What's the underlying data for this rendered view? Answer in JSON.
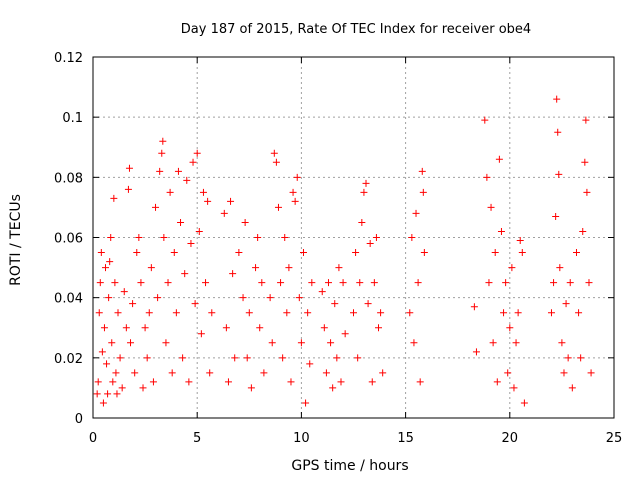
{
  "chart_data": {
    "type": "scatter",
    "title": "Day 187 of 2015, Rate Of TEC Index for receiver obe4",
    "xlabel": "GPS time / hours",
    "ylabel": "ROTI / TECUs",
    "xlim": [
      0,
      25
    ],
    "ylim": [
      0,
      0.12
    ],
    "xticks": [
      0,
      5,
      10,
      15,
      20,
      25
    ],
    "xtick_labels": [
      "0",
      "5",
      "10",
      "15",
      "20",
      "25"
    ],
    "yticks": [
      0,
      0.02,
      0.04,
      0.06,
      0.08,
      0.1,
      0.12
    ],
    "ytick_labels": [
      "0",
      "0.02",
      "0.04",
      "0.06",
      "0.08",
      "0.1",
      "0.12"
    ],
    "grid": true,
    "marker": "+",
    "color": "#ff0000",
    "series": [
      {
        "points": [
          [
            0.2,
            0.008
          ],
          [
            0.25,
            0.012
          ],
          [
            0.3,
            0.035
          ],
          [
            0.35,
            0.045
          ],
          [
            0.4,
            0.055
          ],
          [
            0.45,
            0.022
          ],
          [
            0.5,
            0.005
          ],
          [
            0.55,
            0.03
          ],
          [
            0.6,
            0.05
          ],
          [
            0.65,
            0.018
          ],
          [
            0.7,
            0.008
          ],
          [
            0.75,
            0.04
          ],
          [
            0.8,
            0.052
          ],
          [
            0.85,
            0.06
          ],
          [
            0.9,
            0.025
          ],
          [
            0.95,
            0.012
          ],
          [
            1.0,
            0.073
          ],
          [
            1.05,
            0.045
          ],
          [
            1.1,
            0.015
          ],
          [
            1.15,
            0.008
          ],
          [
            1.2,
            0.035
          ],
          [
            1.3,
            0.02
          ],
          [
            1.4,
            0.01
          ],
          [
            1.5,
            0.042
          ],
          [
            1.6,
            0.03
          ],
          [
            1.7,
            0.076
          ],
          [
            1.75,
            0.083
          ],
          [
            1.8,
            0.025
          ],
          [
            1.9,
            0.038
          ],
          [
            2.0,
            0.015
          ],
          [
            2.1,
            0.055
          ],
          [
            2.2,
            0.06
          ],
          [
            2.3,
            0.045
          ],
          [
            2.4,
            0.01
          ],
          [
            2.5,
            0.03
          ],
          [
            2.6,
            0.02
          ],
          [
            2.7,
            0.035
          ],
          [
            2.8,
            0.05
          ],
          [
            2.9,
            0.012
          ],
          [
            3.0,
            0.07
          ],
          [
            3.1,
            0.04
          ],
          [
            3.2,
            0.082
          ],
          [
            3.3,
            0.088
          ],
          [
            3.35,
            0.092
          ],
          [
            3.4,
            0.06
          ],
          [
            3.5,
            0.025
          ],
          [
            3.6,
            0.045
          ],
          [
            3.7,
            0.075
          ],
          [
            3.8,
            0.015
          ],
          [
            3.9,
            0.055
          ],
          [
            4.0,
            0.035
          ],
          [
            4.1,
            0.082
          ],
          [
            4.2,
            0.065
          ],
          [
            4.3,
            0.02
          ],
          [
            4.4,
            0.048
          ],
          [
            4.5,
            0.079
          ],
          [
            4.6,
            0.012
          ],
          [
            4.7,
            0.058
          ],
          [
            4.8,
            0.085
          ],
          [
            4.9,
            0.038
          ],
          [
            5.0,
            0.088
          ],
          [
            5.1,
            0.062
          ],
          [
            5.2,
            0.028
          ],
          [
            5.3,
            0.075
          ],
          [
            5.4,
            0.045
          ],
          [
            5.5,
            0.072
          ],
          [
            5.6,
            0.015
          ],
          [
            5.7,
            0.035
          ],
          [
            6.3,
            0.068
          ],
          [
            6.4,
            0.03
          ],
          [
            6.5,
            0.012
          ],
          [
            6.6,
            0.072
          ],
          [
            6.7,
            0.048
          ],
          [
            6.8,
            0.02
          ],
          [
            7.0,
            0.055
          ],
          [
            7.2,
            0.04
          ],
          [
            7.3,
            0.065
          ],
          [
            7.4,
            0.02
          ],
          [
            7.5,
            0.035
          ],
          [
            7.6,
            0.01
          ],
          [
            7.8,
            0.05
          ],
          [
            7.9,
            0.06
          ],
          [
            8.0,
            0.03
          ],
          [
            8.1,
            0.045
          ],
          [
            8.2,
            0.015
          ],
          [
            8.5,
            0.04
          ],
          [
            8.6,
            0.025
          ],
          [
            8.7,
            0.088
          ],
          [
            8.8,
            0.085
          ],
          [
            8.9,
            0.07
          ],
          [
            9.0,
            0.045
          ],
          [
            9.1,
            0.02
          ],
          [
            9.2,
            0.06
          ],
          [
            9.3,
            0.035
          ],
          [
            9.4,
            0.05
          ],
          [
            9.5,
            0.012
          ],
          [
            9.6,
            0.075
          ],
          [
            9.7,
            0.072
          ],
          [
            9.8,
            0.08
          ],
          [
            9.9,
            0.04
          ],
          [
            10.0,
            0.025
          ],
          [
            10.1,
            0.055
          ],
          [
            10.2,
            0.005
          ],
          [
            10.3,
            0.035
          ],
          [
            10.4,
            0.018
          ],
          [
            10.5,
            0.045
          ],
          [
            11.0,
            0.042
          ],
          [
            11.1,
            0.03
          ],
          [
            11.2,
            0.015
          ],
          [
            11.3,
            0.045
          ],
          [
            11.4,
            0.025
          ],
          [
            11.5,
            0.01
          ],
          [
            11.6,
            0.038
          ],
          [
            11.7,
            0.02
          ],
          [
            11.8,
            0.05
          ],
          [
            11.9,
            0.012
          ],
          [
            12.0,
            0.045
          ],
          [
            12.1,
            0.028
          ],
          [
            12.5,
            0.035
          ],
          [
            12.6,
            0.055
          ],
          [
            12.7,
            0.02
          ],
          [
            12.8,
            0.045
          ],
          [
            12.9,
            0.065
          ],
          [
            13.0,
            0.075
          ],
          [
            13.1,
            0.078
          ],
          [
            13.2,
            0.038
          ],
          [
            13.3,
            0.058
          ],
          [
            13.4,
            0.012
          ],
          [
            13.5,
            0.045
          ],
          [
            13.6,
            0.06
          ],
          [
            13.7,
            0.03
          ],
          [
            13.8,
            0.035
          ],
          [
            13.9,
            0.015
          ],
          [
            15.2,
            0.035
          ],
          [
            15.3,
            0.06
          ],
          [
            15.4,
            0.025
          ],
          [
            15.5,
            0.068
          ],
          [
            15.6,
            0.045
          ],
          [
            15.7,
            0.012
          ],
          [
            15.8,
            0.082
          ],
          [
            15.85,
            0.075
          ],
          [
            15.9,
            0.055
          ],
          [
            18.3,
            0.037
          ],
          [
            18.4,
            0.022
          ],
          [
            18.8,
            0.099
          ],
          [
            18.9,
            0.08
          ],
          [
            19.0,
            0.045
          ],
          [
            19.1,
            0.07
          ],
          [
            19.2,
            0.025
          ],
          [
            19.3,
            0.055
          ],
          [
            19.4,
            0.012
          ],
          [
            19.5,
            0.086
          ],
          [
            19.6,
            0.062
          ],
          [
            19.7,
            0.035
          ],
          [
            19.8,
            0.045
          ],
          [
            19.9,
            0.015
          ],
          [
            20.0,
            0.03
          ],
          [
            20.1,
            0.05
          ],
          [
            20.2,
            0.01
          ],
          [
            20.3,
            0.025
          ],
          [
            20.4,
            0.035
          ],
          [
            20.5,
            0.059
          ],
          [
            20.6,
            0.055
          ],
          [
            20.7,
            0.005
          ],
          [
            22.0,
            0.035
          ],
          [
            22.1,
            0.045
          ],
          [
            22.2,
            0.067
          ],
          [
            22.25,
            0.106
          ],
          [
            22.3,
            0.095
          ],
          [
            22.35,
            0.081
          ],
          [
            22.4,
            0.05
          ],
          [
            22.5,
            0.025
          ],
          [
            22.6,
            0.015
          ],
          [
            22.7,
            0.038
          ],
          [
            22.8,
            0.02
          ],
          [
            22.9,
            0.045
          ],
          [
            23.0,
            0.01
          ],
          [
            23.2,
            0.055
          ],
          [
            23.3,
            0.035
          ],
          [
            23.4,
            0.02
          ],
          [
            23.5,
            0.062
          ],
          [
            23.6,
            0.085
          ],
          [
            23.65,
            0.099
          ],
          [
            23.7,
            0.075
          ],
          [
            23.8,
            0.045
          ],
          [
            23.9,
            0.015
          ]
        ]
      }
    ]
  }
}
